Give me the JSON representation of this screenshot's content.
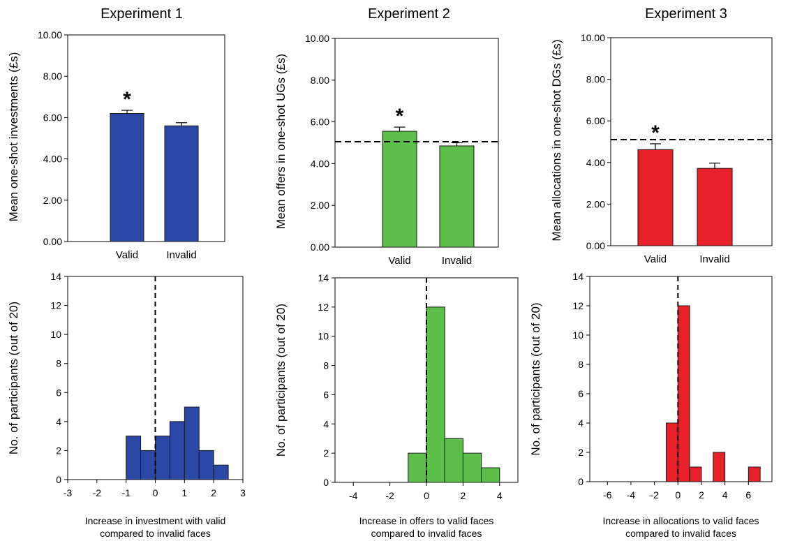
{
  "chart_data": [
    {
      "type": "bar",
      "title": "Experiment 1",
      "ylabel": "Mean one-shot investments (£s)",
      "ylim": [
        0,
        10
      ],
      "yticks": [
        "0.00",
        "2.00",
        "4.00",
        "6.00",
        "8.00",
        "10.00"
      ],
      "categories": [
        "Valid",
        "Invalid"
      ],
      "values": [
        6.2,
        5.6
      ],
      "errors": [
        0.15,
        0.15
      ],
      "color": "#2c48a6",
      "annotation": "*",
      "annotation_category": "Valid",
      "reference_line": null
    },
    {
      "type": "bar",
      "title": "Experiment 2",
      "ylabel": "Mean offers in one-shot UGs (£s)",
      "ylim": [
        0,
        10
      ],
      "yticks": [
        "0.00",
        "2.00",
        "4.00",
        "6.00",
        "8.00",
        "10.00"
      ],
      "categories": [
        "Valid",
        "Invalid"
      ],
      "values": [
        5.55,
        4.85
      ],
      "errors": [
        0.2,
        0.15
      ],
      "color": "#5bbf4a",
      "annotation": "*",
      "annotation_category": "Valid",
      "reference_line": 5.05
    },
    {
      "type": "bar",
      "title": "Experiment 3",
      "ylabel": "Mean allocations in one-shot DGs (£s)",
      "ylim": [
        0,
        10
      ],
      "yticks": [
        "0.00",
        "2.00",
        "4.00",
        "6.00",
        "8.00",
        "10.00"
      ],
      "categories": [
        "Valid",
        "Invalid"
      ],
      "values": [
        4.62,
        3.72
      ],
      "errors": [
        0.28,
        0.25
      ],
      "color": "#e8202a",
      "annotation": "*",
      "annotation_category": "Valid",
      "reference_line": 5.1
    },
    {
      "type": "bar",
      "subtype": "histogram",
      "ylabel": "No. of participants (out of 20)",
      "xlabel": [
        "Increase in investment with valid",
        "compared to invalid faces"
      ],
      "xlim": [
        -3,
        3
      ],
      "xticks": [
        "-3",
        "-2",
        "-1",
        "0",
        "1",
        "2",
        "3"
      ],
      "ylim": [
        0,
        14
      ],
      "yticks": [
        "0",
        "2",
        "4",
        "6",
        "8",
        "10",
        "12",
        "14"
      ],
      "bin_width": 0.5,
      "bin_starts": [
        -1.0,
        -0.5,
        0.0,
        0.5,
        1.0,
        1.5,
        2.0
      ],
      "values": [
        3,
        2,
        3,
        4,
        5,
        2,
        1
      ],
      "color": "#2c48a6",
      "reference_line_x": 0
    },
    {
      "type": "bar",
      "subtype": "histogram",
      "ylabel": "No. of participants (out of 20)",
      "xlabel": [
        "Increase in offers to valid faces",
        "compared to invalid faces"
      ],
      "xlim": [
        -5,
        5
      ],
      "xticks": [
        "-4",
        "-2",
        "0",
        "2",
        "4"
      ],
      "ylim": [
        0,
        14
      ],
      "yticks": [
        "0",
        "2",
        "4",
        "6",
        "8",
        "10",
        "12",
        "14"
      ],
      "bin_width": 1,
      "bin_starts": [
        -1,
        0,
        1,
        2,
        3
      ],
      "values": [
        2,
        12,
        3,
        2,
        1
      ],
      "color": "#5bbf4a",
      "reference_line_x": 0
    },
    {
      "type": "bar",
      "subtype": "histogram",
      "ylabel": "No. of participants (out of 20)",
      "xlabel": [
        "Increase in allocations to valid faces",
        "compared to invalid faces"
      ],
      "xlim": [
        -7.5,
        8
      ],
      "xticks": [
        "-6",
        "-4",
        "-2",
        "0",
        "2",
        "4",
        "6"
      ],
      "ylim": [
        0,
        14
      ],
      "yticks": [
        "0",
        "2",
        "4",
        "6",
        "8",
        "10",
        "12",
        "14"
      ],
      "bin_width": 1,
      "bin_starts": [
        -1,
        0,
        1,
        3,
        6
      ],
      "values": [
        4,
        12,
        1,
        2,
        1
      ],
      "color": "#e8202a",
      "reference_line_x": 0
    }
  ]
}
